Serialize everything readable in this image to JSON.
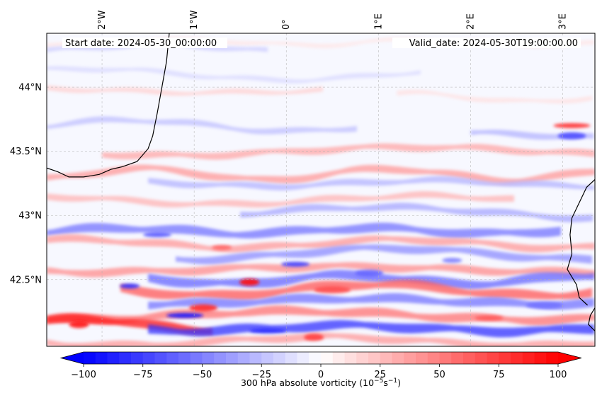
{
  "figure": {
    "start_date": "Start date: 2024-05-30_00:00:00",
    "valid_date": "Valid_date: 2024-05-30T19:00:00.00",
    "variable": "300 hPa absolute vorticity",
    "units_base": "10",
    "units_exp1": "−5",
    "units_mid": "s",
    "units_exp2": "−1"
  },
  "map": {
    "lon_range": [
      -2.6,
      3.35
    ],
    "lat_range": [
      41.98,
      44.42
    ],
    "lon_ticks": [
      {
        "value": -2,
        "label": "2°W"
      },
      {
        "value": -1,
        "label": "1°W"
      },
      {
        "value": 0,
        "label": "0°"
      },
      {
        "value": 1,
        "label": "1°E"
      },
      {
        "value": 2,
        "label": "2°E"
      },
      {
        "value": 3,
        "label": "3°E"
      }
    ],
    "lat_ticks": [
      {
        "value": 44.0,
        "label": "44°N"
      },
      {
        "value": 43.5,
        "label": "43.5°N"
      },
      {
        "value": 43.0,
        "label": "43°N"
      },
      {
        "value": 42.5,
        "label": "42.5°N"
      }
    ],
    "bands": [
      {
        "lat": 44.35,
        "value": 10,
        "lon_from": -2.6,
        "lon_to": 3.35
      },
      {
        "lat": 44.3,
        "value": -20,
        "lon_from": -2.6,
        "lon_to": -0.2
      },
      {
        "lat": 44.1,
        "value": -15,
        "lon_from": -2.6,
        "lon_to": 1.5
      },
      {
        "lat": 43.98,
        "value": 18,
        "lon_from": -2.6,
        "lon_to": 0.4
      },
      {
        "lat": 43.92,
        "value": 12,
        "lon_from": 1.2,
        "lon_to": 3.35
      },
      {
        "lat": 43.7,
        "value": -25,
        "lon_from": -2.6,
        "lon_to": 0.8
      },
      {
        "lat": 43.62,
        "value": -30,
        "lon_from": 2.0,
        "lon_to": 3.35
      },
      {
        "lat": 43.5,
        "value": 35,
        "lon_from": -2.0,
        "lon_to": 3.35
      },
      {
        "lat": 43.32,
        "value": 40,
        "lon_from": -2.6,
        "lon_to": 3.35
      },
      {
        "lat": 43.25,
        "value": -30,
        "lon_from": -1.5,
        "lon_to": 3.35
      },
      {
        "lat": 43.12,
        "value": 30,
        "lon_from": -2.6,
        "lon_to": 2.5
      },
      {
        "lat": 43.02,
        "value": -35,
        "lon_from": -0.5,
        "lon_to": 3.35
      },
      {
        "lat": 42.88,
        "value": -55,
        "lon_from": -2.6,
        "lon_to": 3.0
      },
      {
        "lat": 42.78,
        "value": 40,
        "lon_from": -2.6,
        "lon_to": 3.35
      },
      {
        "lat": 42.7,
        "value": -45,
        "lon_from": -1.2,
        "lon_to": 3.35
      },
      {
        "lat": 42.58,
        "value": 45,
        "lon_from": -2.6,
        "lon_to": 3.35
      },
      {
        "lat": 42.5,
        "value": -60,
        "lon_from": -1.5,
        "lon_to": 3.35
      },
      {
        "lat": 42.42,
        "value": 65,
        "lon_from": -1.8,
        "lon_to": 3.35
      },
      {
        "lat": 42.33,
        "value": -55,
        "lon_from": -1.5,
        "lon_to": 3.35
      },
      {
        "lat": 42.22,
        "value": 55,
        "lon_from": -2.6,
        "lon_to": 3.35
      },
      {
        "lat": 42.15,
        "value": 90,
        "lon_from": -2.6,
        "lon_to": -0.8
      },
      {
        "lat": 42.12,
        "value": -80,
        "lon_from": -1.5,
        "lon_to": 3.35
      },
      {
        "lat": 42.02,
        "value": 40,
        "lon_from": -2.6,
        "lon_to": 3.35
      }
    ],
    "eddies": [
      {
        "lon": -1.7,
        "lat": 42.45,
        "value": -80
      },
      {
        "lon": -0.9,
        "lat": 42.28,
        "value": 85
      },
      {
        "lon": -1.1,
        "lat": 42.22,
        "value": -90
      },
      {
        "lon": -0.4,
        "lat": 42.48,
        "value": 95
      },
      {
        "lon": 0.1,
        "lat": 42.62,
        "value": -75
      },
      {
        "lon": 0.5,
        "lat": 42.42,
        "value": 70
      },
      {
        "lon": -0.7,
        "lat": 42.75,
        "value": 60
      },
      {
        "lon": 0.9,
        "lat": 42.55,
        "value": -60
      },
      {
        "lon": -0.2,
        "lat": 42.1,
        "value": -85
      },
      {
        "lon": 0.3,
        "lat": 42.05,
        "value": 75
      },
      {
        "lon": 2.2,
        "lat": 42.2,
        "value": 65
      },
      {
        "lon": 2.8,
        "lat": 42.3,
        "value": -55
      },
      {
        "lon": 1.8,
        "lat": 42.65,
        "value": -50
      },
      {
        "lon": 3.1,
        "lat": 43.62,
        "value": -70
      },
      {
        "lon": 3.1,
        "lat": 43.7,
        "value": 80
      },
      {
        "lon": -2.25,
        "lat": 42.15,
        "value": 90
      },
      {
        "lon": -1.4,
        "lat": 42.85,
        "value": -65
      }
    ],
    "coastlines": [
      [
        [
          -1.27,
          44.42
        ],
        [
          -1.3,
          44.2
        ],
        [
          -1.35,
          44.0
        ],
        [
          -1.4,
          43.8
        ],
        [
          -1.45,
          43.62
        ],
        [
          -1.5,
          43.52
        ],
        [
          -1.62,
          43.42
        ],
        [
          -1.78,
          43.38
        ],
        [
          -1.9,
          43.36
        ],
        [
          -2.03,
          43.32
        ],
        [
          -2.2,
          43.3
        ],
        [
          -2.36,
          43.3
        ],
        [
          -2.48,
          43.34
        ],
        [
          -2.6,
          43.37
        ]
      ],
      [
        [
          3.35,
          43.28
        ],
        [
          3.26,
          43.22
        ],
        [
          3.18,
          43.1
        ],
        [
          3.1,
          42.98
        ],
        [
          3.08,
          42.85
        ],
        [
          3.1,
          42.7
        ],
        [
          3.05,
          42.58
        ],
        [
          3.15,
          42.46
        ],
        [
          3.18,
          42.36
        ],
        [
          3.27,
          42.3
        ]
      ],
      [
        [
          3.35,
          42.28
        ],
        [
          3.3,
          42.22
        ],
        [
          3.28,
          42.15
        ],
        [
          3.35,
          42.1
        ]
      ]
    ]
  },
  "colorbar": {
    "min": -110,
    "max": 110,
    "ticks": [
      {
        "value": -100,
        "label": "−100"
      },
      {
        "value": -75,
        "label": "−75"
      },
      {
        "value": -50,
        "label": "−50"
      },
      {
        "value": -25,
        "label": "−25"
      },
      {
        "value": 0,
        "label": "0"
      },
      {
        "value": 25,
        "label": "25"
      },
      {
        "value": 50,
        "label": "50"
      },
      {
        "value": 75,
        "label": "75"
      },
      {
        "value": 100,
        "label": "100"
      }
    ]
  }
}
